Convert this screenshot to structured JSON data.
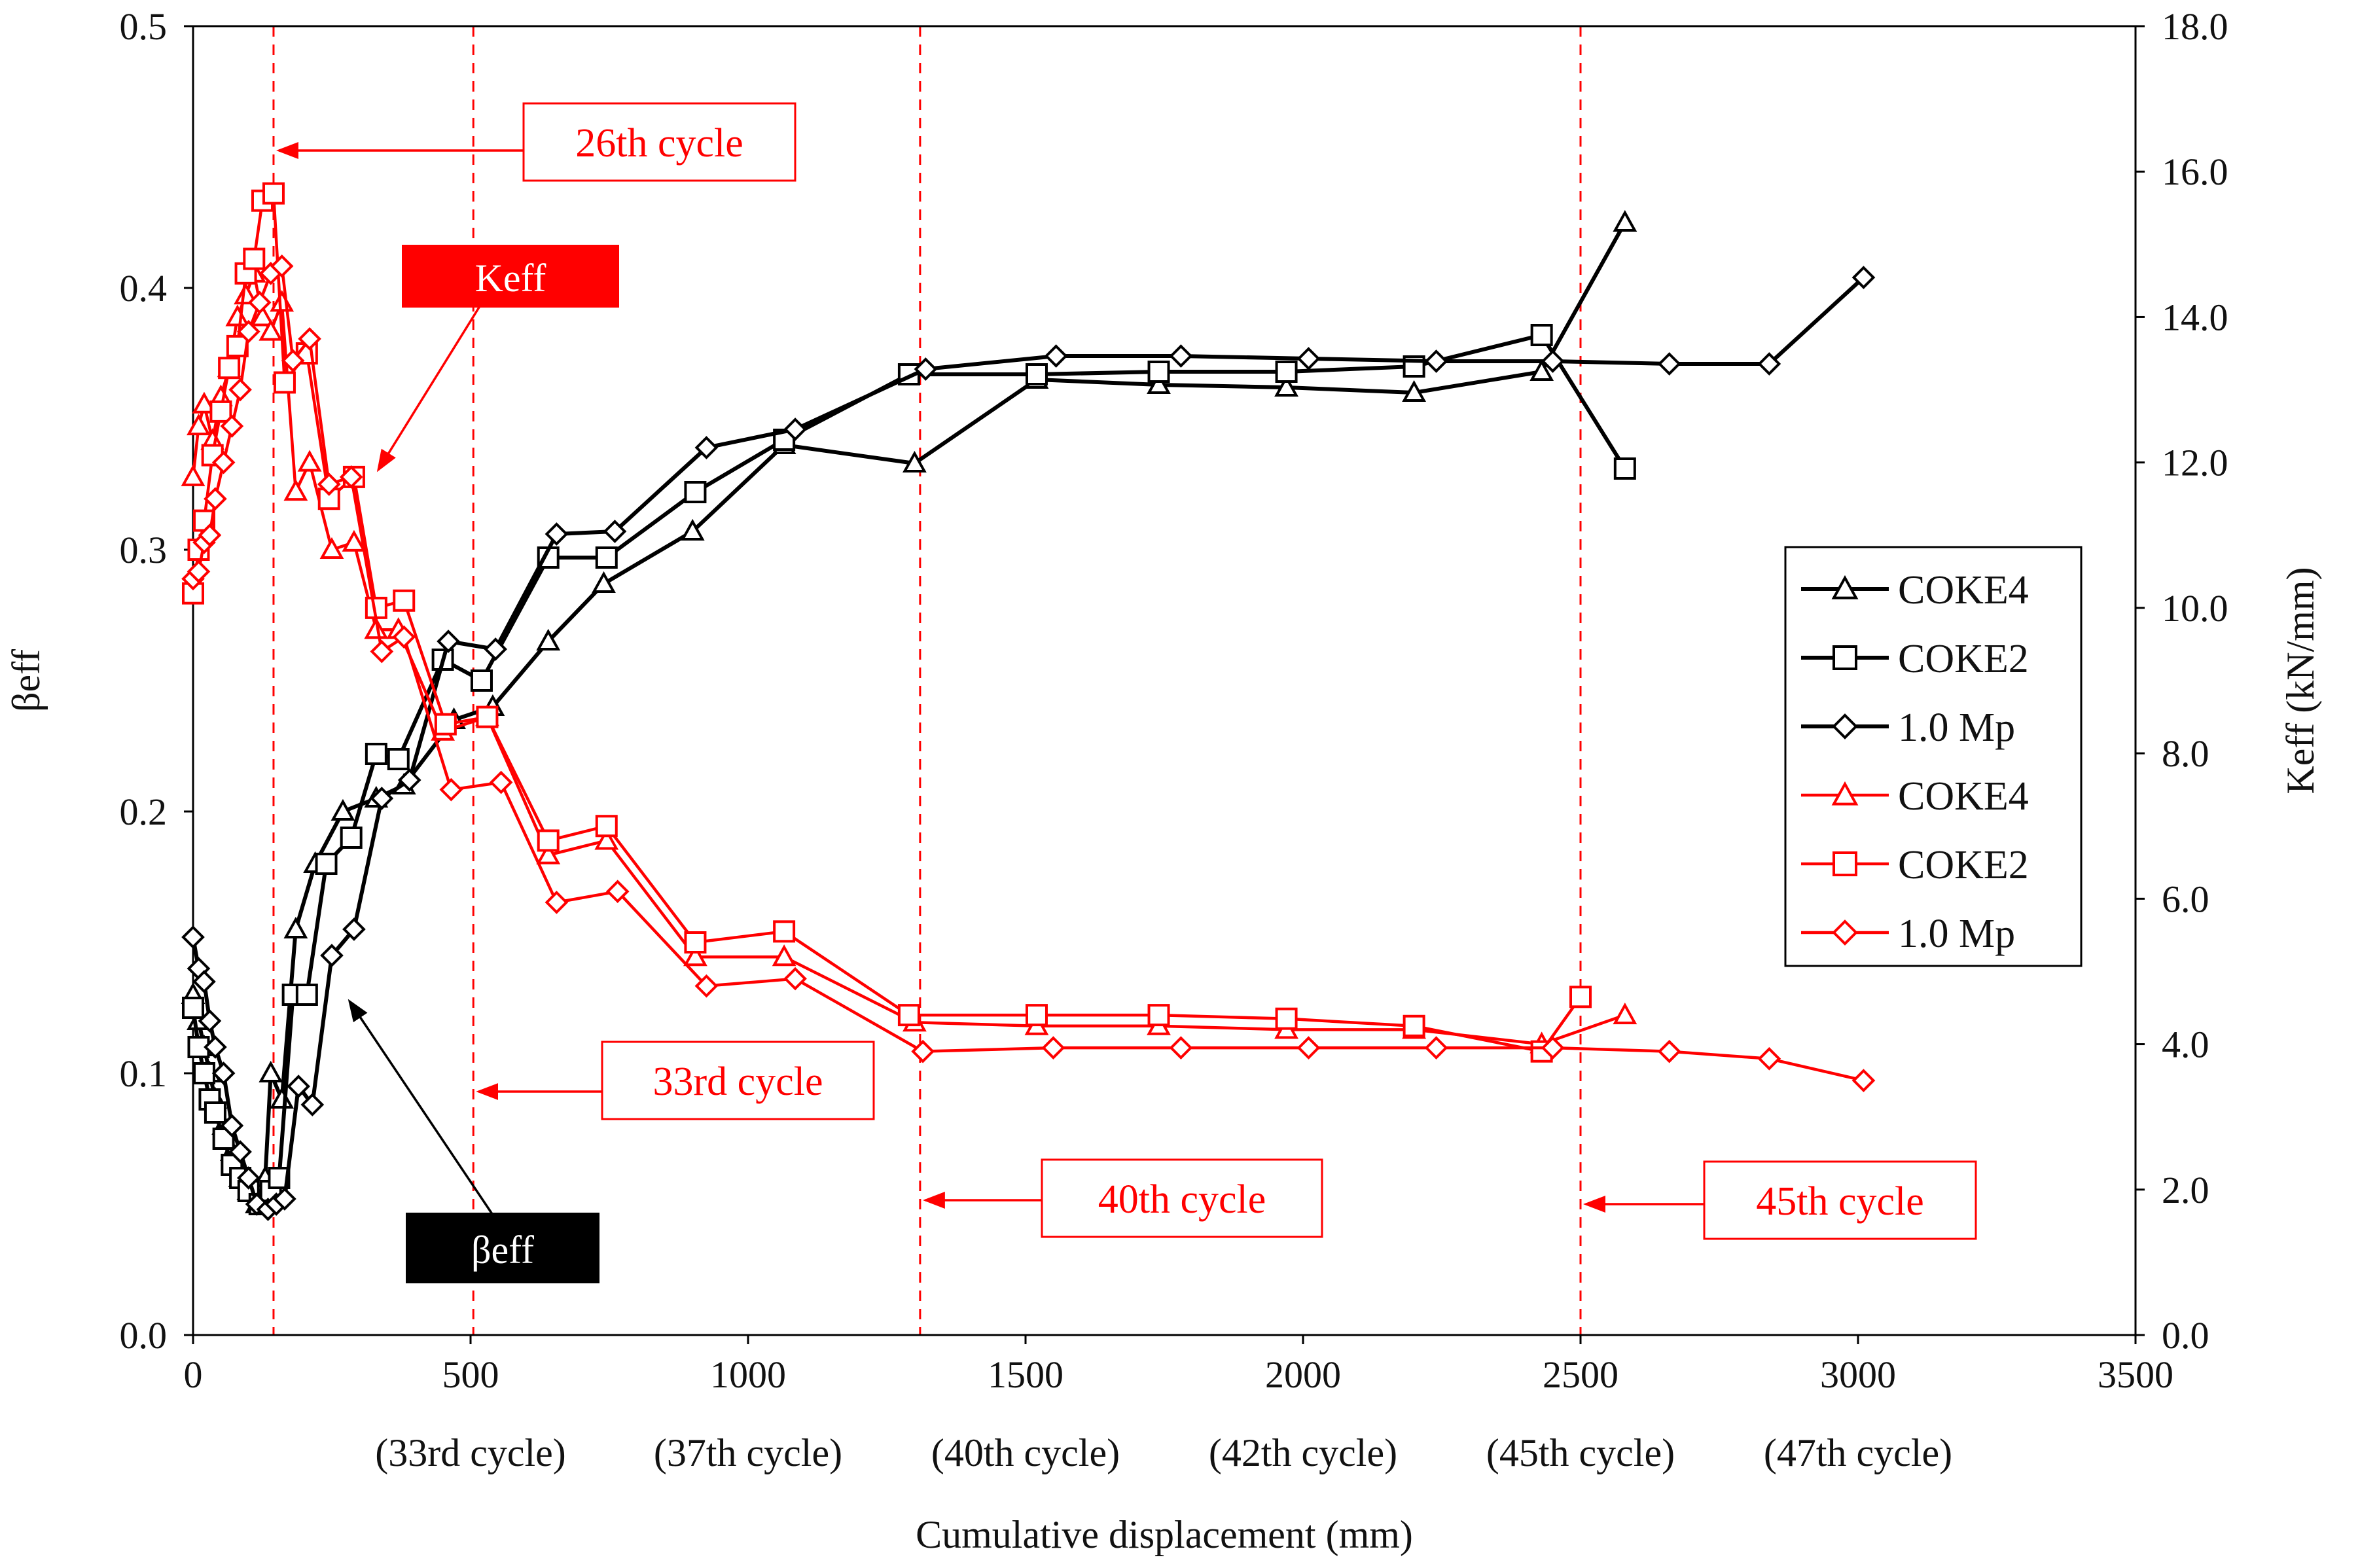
{
  "chart_data": {
    "type": "line",
    "xlabel": "Cumulative displacement (mm)",
    "ylabel_left": "βeff",
    "ylabel_right": "Keff (kN/mm)",
    "xlim": [
      0,
      3500
    ],
    "ylim_left": [
      0,
      0.5
    ],
    "ylim_right": [
      0,
      18
    ],
    "x_ticks": [
      0,
      500,
      1000,
      1500,
      2000,
      2500,
      3000,
      3500
    ],
    "y_left_ticks": [
      "0.0",
      "0.1",
      "0.2",
      "0.3",
      "0.4",
      "0.5"
    ],
    "y_right_ticks": [
      "0.0",
      "2.0",
      "4.0",
      "6.0",
      "8.0",
      "10.0",
      "12.0",
      "14.0",
      "16.0",
      "18.0"
    ],
    "x_cycle_labels": [
      {
        "x": 500,
        "text": "(33rd cycle)"
      },
      {
        "x": 1000,
        "text": "(37th cycle)"
      },
      {
        "x": 1500,
        "text": "(40th cycle)"
      },
      {
        "x": 2000,
        "text": "(42th cycle)"
      },
      {
        "x": 2500,
        "text": "(45th cycle)"
      },
      {
        "x": 3000,
        "text": "(47th cycle)"
      }
    ],
    "cycle_lines": [
      {
        "x": 145,
        "label": "26th cycle"
      },
      {
        "x": 505,
        "label": "33rd cycle"
      },
      {
        "x": 1310,
        "label": "40th cycle"
      },
      {
        "x": 2500,
        "label": "45th cycle"
      }
    ],
    "tag_keff": "Keff",
    "tag_beta": "βeff",
    "legend": [
      {
        "label": "COKE4",
        "color": "#000000",
        "marker": "triangle"
      },
      {
        "label": "COKE2",
        "color": "#000000",
        "marker": "square"
      },
      {
        "label": "1.0 Mp",
        "color": "#000000",
        "marker": "diamond"
      },
      {
        "label": "COKE4",
        "color": "#ff0000",
        "marker": "triangle"
      },
      {
        "label": "COKE2",
        "color": "#ff0000",
        "marker": "square"
      },
      {
        "label": "1.0 Mp",
        "color": "#ff0000",
        "marker": "diamond"
      }
    ],
    "series": [
      {
        "name": "COKE4 βeff",
        "axis": "left",
        "color": "#000000",
        "marker": "triangle",
        "points": [
          [
            0,
            0.13
          ],
          [
            10,
            0.12
          ],
          [
            20,
            0.11
          ],
          [
            30,
            0.1
          ],
          [
            40,
            0.09
          ],
          [
            55,
            0.08
          ],
          [
            70,
            0.07
          ],
          [
            85,
            0.06
          ],
          [
            100,
            0.055
          ],
          [
            115,
            0.05
          ],
          [
            130,
            0.06
          ],
          [
            140,
            0.1
          ],
          [
            160,
            0.09
          ],
          [
            185,
            0.155
          ],
          [
            220,
            0.18
          ],
          [
            270,
            0.2
          ],
          [
            330,
            0.205
          ],
          [
            380,
            0.21
          ],
          [
            470,
            0.235
          ],
          [
            540,
            0.24
          ],
          [
            640,
            0.265
          ],
          [
            740,
            0.287
          ],
          [
            900,
            0.307
          ],
          [
            1065,
            0.34
          ],
          [
            1300,
            0.333
          ],
          [
            1520,
            0.365
          ],
          [
            1740,
            0.363
          ],
          [
            1970,
            0.362
          ],
          [
            2200,
            0.36
          ],
          [
            2430,
            0.368
          ],
          [
            2580,
            0.425
          ]
        ]
      },
      {
        "name": "COKE2 βeff",
        "axis": "left",
        "color": "#000000",
        "marker": "square",
        "points": [
          [
            0,
            0.125
          ],
          [
            10,
            0.11
          ],
          [
            20,
            0.1
          ],
          [
            30,
            0.09
          ],
          [
            40,
            0.085
          ],
          [
            55,
            0.075
          ],
          [
            70,
            0.065
          ],
          [
            85,
            0.06
          ],
          [
            100,
            0.055
          ],
          [
            120,
            0.05
          ],
          [
            140,
            0.055
          ],
          [
            155,
            0.06
          ],
          [
            180,
            0.13
          ],
          [
            205,
            0.13
          ],
          [
            240,
            0.18
          ],
          [
            285,
            0.19
          ],
          [
            330,
            0.222
          ],
          [
            370,
            0.22
          ],
          [
            450,
            0.258
          ],
          [
            520,
            0.25
          ],
          [
            640,
            0.297
          ],
          [
            745,
            0.297
          ],
          [
            905,
            0.322
          ],
          [
            1065,
            0.342
          ],
          [
            1290,
            0.367
          ],
          [
            1520,
            0.367
          ],
          [
            1740,
            0.368
          ],
          [
            1970,
            0.368
          ],
          [
            2200,
            0.37
          ],
          [
            2430,
            0.382
          ],
          [
            2580,
            0.331
          ]
        ]
      },
      {
        "name": "1.0 Mp βeff",
        "axis": "left",
        "color": "#000000",
        "marker": "diamond",
        "points": [
          [
            0,
            0.152
          ],
          [
            10,
            0.14
          ],
          [
            20,
            0.135
          ],
          [
            30,
            0.12
          ],
          [
            40,
            0.11
          ],
          [
            55,
            0.1
          ],
          [
            70,
            0.08
          ],
          [
            85,
            0.07
          ],
          [
            100,
            0.06
          ],
          [
            115,
            0.05
          ],
          [
            135,
            0.048
          ],
          [
            150,
            0.05
          ],
          [
            165,
            0.052
          ],
          [
            190,
            0.095
          ],
          [
            215,
            0.088
          ],
          [
            250,
            0.145
          ],
          [
            290,
            0.155
          ],
          [
            340,
            0.205
          ],
          [
            390,
            0.212
          ],
          [
            460,
            0.265
          ],
          [
            545,
            0.262
          ],
          [
            655,
            0.306
          ],
          [
            760,
            0.307
          ],
          [
            925,
            0.339
          ],
          [
            1085,
            0.346
          ],
          [
            1320,
            0.369
          ],
          [
            1555,
            0.374
          ],
          [
            1780,
            0.374
          ],
          [
            2010,
            0.373
          ],
          [
            2240,
            0.372
          ],
          [
            2450,
            0.372
          ],
          [
            2660,
            0.371
          ],
          [
            2840,
            0.371
          ],
          [
            3010,
            0.404
          ]
        ]
      },
      {
        "name": "COKE4 Keff",
        "axis": "right",
        "color": "#ff0000",
        "marker": "triangle",
        "points": [
          [
            0,
            11.8
          ],
          [
            10,
            12.5
          ],
          [
            20,
            12.8
          ],
          [
            35,
            12.3
          ],
          [
            50,
            12.9
          ],
          [
            65,
            13.3
          ],
          [
            80,
            14.0
          ],
          [
            95,
            14.3
          ],
          [
            110,
            14.6
          ],
          [
            125,
            14.0
          ],
          [
            140,
            13.8
          ],
          [
            160,
            14.2
          ],
          [
            185,
            11.6
          ],
          [
            210,
            12.0
          ],
          [
            250,
            10.8
          ],
          [
            290,
            10.9
          ],
          [
            330,
            9.7
          ],
          [
            370,
            9.7
          ],
          [
            450,
            8.3
          ],
          [
            530,
            8.5
          ],
          [
            640,
            6.6
          ],
          [
            745,
            6.8
          ],
          [
            905,
            5.2
          ],
          [
            1065,
            5.2
          ],
          [
            1300,
            4.3
          ],
          [
            1520,
            4.25
          ],
          [
            1740,
            4.25
          ],
          [
            1970,
            4.2
          ],
          [
            2200,
            4.2
          ],
          [
            2430,
            4.0
          ],
          [
            2580,
            4.4
          ]
        ]
      },
      {
        "name": "COKE2 Keff",
        "axis": "right",
        "color": "#ff0000",
        "marker": "square",
        "points": [
          [
            0,
            10.2
          ],
          [
            10,
            10.8
          ],
          [
            20,
            11.2
          ],
          [
            35,
            12.1
          ],
          [
            50,
            12.7
          ],
          [
            65,
            13.3
          ],
          [
            80,
            13.6
          ],
          [
            95,
            14.6
          ],
          [
            110,
            14.8
          ],
          [
            125,
            15.6
          ],
          [
            145,
            15.7
          ],
          [
            165,
            13.1
          ],
          [
            205,
            13.5
          ],
          [
            245,
            11.5
          ],
          [
            290,
            11.8
          ],
          [
            330,
            10.0
          ],
          [
            380,
            10.1
          ],
          [
            455,
            8.4
          ],
          [
            530,
            8.5
          ],
          [
            640,
            6.8
          ],
          [
            745,
            7.0
          ],
          [
            905,
            5.4
          ],
          [
            1065,
            5.55
          ],
          [
            1290,
            4.4
          ],
          [
            1520,
            4.4
          ],
          [
            1740,
            4.4
          ],
          [
            1970,
            4.35
          ],
          [
            2200,
            4.25
          ],
          [
            2430,
            3.9
          ],
          [
            2500,
            4.65
          ]
        ]
      },
      {
        "name": "1.0 Mp Keff",
        "axis": "right",
        "color": "#ff0000",
        "marker": "diamond",
        "points": [
          [
            0,
            10.4
          ],
          [
            10,
            10.5
          ],
          [
            20,
            10.9
          ],
          [
            30,
            11.0
          ],
          [
            40,
            11.5
          ],
          [
            55,
            12.0
          ],
          [
            70,
            12.5
          ],
          [
            85,
            13.0
          ],
          [
            100,
            13.8
          ],
          [
            120,
            14.2
          ],
          [
            140,
            14.6
          ],
          [
            160,
            14.7
          ],
          [
            180,
            13.4
          ],
          [
            210,
            13.7
          ],
          [
            245,
            11.7
          ],
          [
            285,
            11.8
          ],
          [
            340,
            9.4
          ],
          [
            380,
            9.6
          ],
          [
            465,
            7.5
          ],
          [
            555,
            7.6
          ],
          [
            655,
            5.95
          ],
          [
            765,
            6.1
          ],
          [
            925,
            4.8
          ],
          [
            1085,
            4.9
          ],
          [
            1315,
            3.9
          ],
          [
            1550,
            3.95
          ],
          [
            1780,
            3.95
          ],
          [
            2010,
            3.95
          ],
          [
            2240,
            3.95
          ],
          [
            2450,
            3.95
          ],
          [
            2660,
            3.9
          ],
          [
            2840,
            3.8
          ],
          [
            3010,
            3.5
          ]
        ]
      }
    ]
  }
}
